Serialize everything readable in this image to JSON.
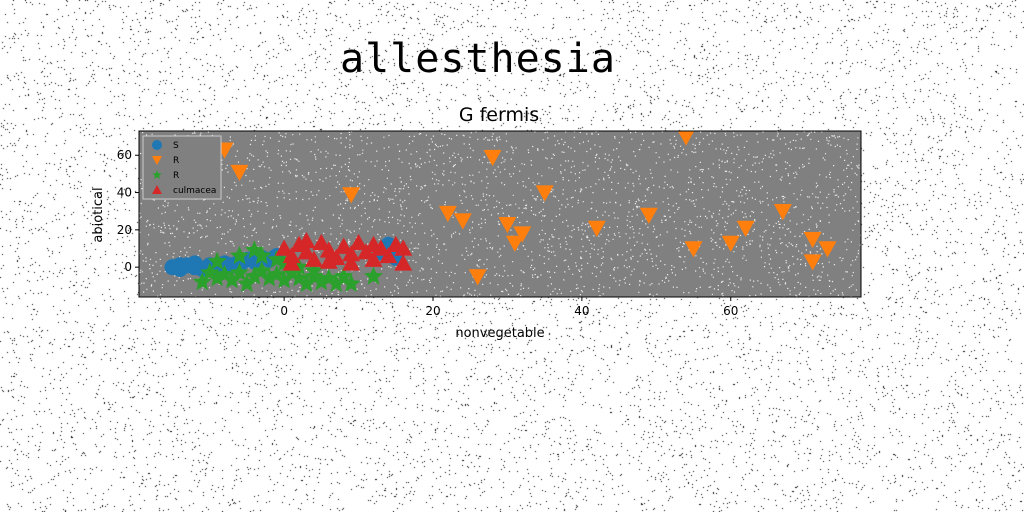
{
  "page": {
    "title": "allesthesia"
  },
  "chart_data": {
    "type": "scatter",
    "title": "G fermis",
    "xlabel": "nonvegetable",
    "ylabel": "abiotical",
    "xlim": [
      -19.5,
      77.5
    ],
    "ylim": [
      -16,
      73
    ],
    "xticks": [
      0,
      20,
      40,
      60
    ],
    "yticks": [
      0,
      20,
      40,
      60
    ],
    "grid": false,
    "legend_placement": "top-left",
    "colors": {
      "S": "#1f77b4",
      "R1": "#ff7f0e",
      "R2": "#2ca02c",
      "culmacea": "#d62728",
      "plot_bg": "#808080"
    },
    "series": [
      {
        "name": "S",
        "marker": "circle",
        "color": "#1f77b4",
        "points": [
          [
            -15,
            0
          ],
          [
            -14,
            -1
          ],
          [
            -13,
            1
          ],
          [
            -12,
            0
          ],
          [
            -11,
            -1
          ],
          [
            -10,
            1
          ],
          [
            -9,
            0
          ],
          [
            -8,
            2
          ],
          [
            -7,
            1
          ],
          [
            -6,
            3
          ],
          [
            -5,
            4
          ],
          [
            -4,
            3
          ],
          [
            -3,
            5
          ],
          [
            -2,
            4
          ],
          [
            -1,
            6
          ],
          [
            -14,
            1
          ],
          [
            -12,
            2
          ],
          [
            -10,
            -1
          ],
          [
            -8,
            0
          ],
          [
            -6,
            1
          ],
          [
            -4,
            5
          ],
          [
            13,
            8
          ],
          [
            14,
            12
          ],
          [
            15,
            9
          ],
          [
            15,
            5
          ]
        ]
      },
      {
        "name": "R",
        "marker": "triangle-down",
        "color": "#ff7f0e",
        "points": [
          [
            -8,
            63
          ],
          [
            -6,
            51
          ],
          [
            9,
            39
          ],
          [
            22,
            29
          ],
          [
            24,
            25
          ],
          [
            26,
            -5
          ],
          [
            28,
            59
          ],
          [
            30,
            23
          ],
          [
            31,
            13
          ],
          [
            32,
            18
          ],
          [
            35,
            40
          ],
          [
            42,
            21
          ],
          [
            49,
            28
          ],
          [
            54,
            70
          ],
          [
            55,
            10
          ],
          [
            60,
            13
          ],
          [
            62,
            21
          ],
          [
            67,
            30
          ],
          [
            71,
            3
          ],
          [
            71,
            15
          ],
          [
            73,
            10
          ]
        ]
      },
      {
        "name": "R",
        "marker": "star",
        "color": "#2ca02c",
        "points": [
          [
            -11,
            -8
          ],
          [
            -10,
            -3
          ],
          [
            -9,
            -6
          ],
          [
            -8,
            -4
          ],
          [
            -7,
            -7
          ],
          [
            -6,
            -3
          ],
          [
            -5,
            -9
          ],
          [
            -4,
            -5
          ],
          [
            -3,
            -2
          ],
          [
            -2,
            -6
          ],
          [
            -1,
            -4
          ],
          [
            0,
            -7
          ],
          [
            1,
            -3
          ],
          [
            2,
            -6
          ],
          [
            3,
            -9
          ],
          [
            4,
            -5
          ],
          [
            5,
            -8
          ],
          [
            6,
            -6
          ],
          [
            7,
            -9
          ],
          [
            8,
            -5
          ],
          [
            9,
            -9
          ],
          [
            -9,
            3
          ],
          [
            -6,
            6
          ],
          [
            -4,
            9
          ],
          [
            -3,
            6
          ],
          [
            -1,
            4
          ],
          [
            0,
            2
          ],
          [
            2,
            0
          ],
          [
            4,
            -2
          ],
          [
            12,
            -5
          ]
        ]
      },
      {
        "name": "culmacea",
        "marker": "triangle-up",
        "color": "#d62728",
        "points": [
          [
            0,
            10
          ],
          [
            1,
            6
          ],
          [
            2,
            12
          ],
          [
            3,
            8
          ],
          [
            4,
            4
          ],
          [
            5,
            13
          ],
          [
            6,
            9
          ],
          [
            7,
            5
          ],
          [
            8,
            11
          ],
          [
            9,
            7
          ],
          [
            10,
            13
          ],
          [
            11,
            8
          ],
          [
            12,
            4
          ],
          [
            13,
            10
          ],
          [
            14,
            6
          ],
          [
            15,
            12
          ],
          [
            16,
            2
          ],
          [
            1,
            2
          ],
          [
            3,
            14
          ],
          [
            6,
            3
          ],
          [
            9,
            2
          ],
          [
            12,
            12
          ],
          [
            16,
            10
          ]
        ]
      }
    ]
  }
}
